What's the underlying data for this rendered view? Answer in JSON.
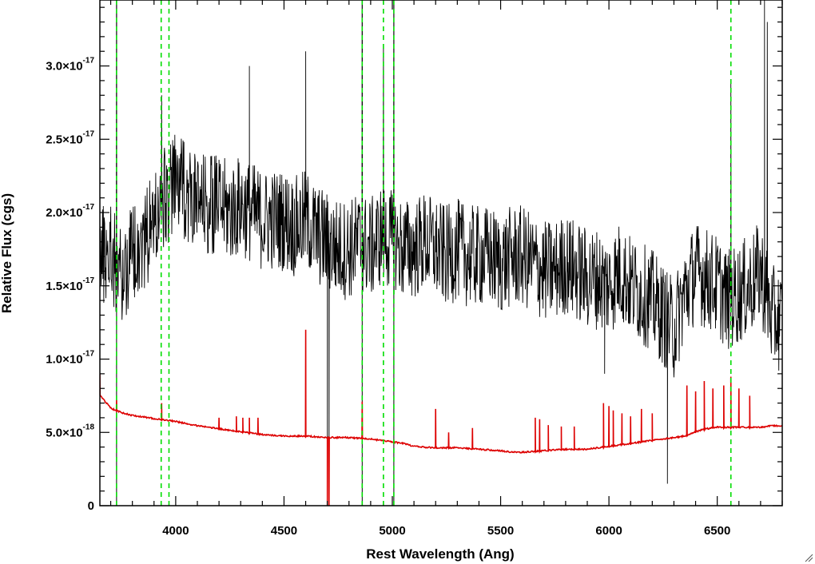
{
  "chart_data": {
    "type": "line",
    "title": "",
    "xlabel": "Rest Wavelength (Ang)",
    "ylabel": "Relative Flux (cgs)",
    "xlim": [
      3650,
      6800
    ],
    "ylim": [
      0,
      3.45e-17
    ],
    "x_ticks": [
      {
        "value": 4000,
        "label": "4000"
      },
      {
        "value": 4500,
        "label": "4500"
      },
      {
        "value": 5000,
        "label": "5000"
      },
      {
        "value": 5500,
        "label": "5500"
      },
      {
        "value": 6000,
        "label": "6000"
      },
      {
        "value": 6500,
        "label": "6500"
      }
    ],
    "y_ticks": [
      {
        "value": 0,
        "mantissa": "0",
        "exponent": ""
      },
      {
        "value": 5e-18,
        "mantissa": "5.0×10",
        "exponent": "-18"
      },
      {
        "value": 1e-17,
        "mantissa": "1.0×10",
        "exponent": "-17"
      },
      {
        "value": 1.5e-17,
        "mantissa": "1.5×10",
        "exponent": "-17"
      },
      {
        "value": 2e-17,
        "mantissa": "2.0×10",
        "exponent": "-17"
      },
      {
        "value": 2.5e-17,
        "mantissa": "2.5×10",
        "exponent": "-17"
      },
      {
        "value": 3e-17,
        "mantissa": "3.0×10",
        "exponent": "-17"
      }
    ],
    "grid": false,
    "legend": "none",
    "series": [
      {
        "color": "#000000",
        "x": [
          3650,
          3700,
          3750,
          3800,
          3850,
          3900,
          3950,
          4000,
          4050,
          4100,
          4150,
          4200,
          4250,
          4300,
          4350,
          4400,
          4450,
          4500,
          4550,
          4600,
          4650,
          4700,
          4750,
          4800,
          4850,
          4900,
          4950,
          5000,
          5050,
          5100,
          5150,
          5200,
          5250,
          5300,
          5350,
          5400,
          5450,
          5500,
          5550,
          5600,
          5650,
          5700,
          5750,
          5800,
          5850,
          5900,
          5950,
          6000,
          6050,
          6100,
          6150,
          6200,
          6250,
          6300,
          6350,
          6400,
          6450,
          6500,
          6550,
          6600,
          6650,
          6700,
          6750,
          6800
        ],
        "y": [
          1.7e-17,
          1.75e-17,
          1.55e-17,
          1.75e-17,
          1.8e-17,
          1.95e-17,
          2.1e-17,
          2.2e-17,
          2.15e-17,
          2.05e-17,
          2.05e-17,
          2.05e-17,
          2e-17,
          2.05e-17,
          2e-17,
          1.95e-17,
          1.95e-17,
          1.95e-17,
          1.9e-17,
          1.95e-17,
          1.85e-17,
          1.8e-17,
          1.75e-17,
          1.75e-17,
          1.8e-17,
          1.75e-17,
          1.85e-17,
          1.8e-17,
          1.75e-17,
          1.75e-17,
          1.8e-17,
          1.75e-17,
          1.7e-17,
          1.75e-17,
          1.7e-17,
          1.7e-17,
          1.7e-17,
          1.65e-17,
          1.7e-17,
          1.7e-17,
          1.65e-17,
          1.6e-17,
          1.6e-17,
          1.65e-17,
          1.6e-17,
          1.55e-17,
          1.55e-17,
          1.5e-17,
          1.6e-17,
          1.5e-17,
          1.45e-17,
          1.4e-17,
          1.3e-17,
          1.2e-17,
          1.45e-17,
          1.6e-17,
          1.55e-17,
          1.5e-17,
          1.4e-17,
          1.45e-17,
          1.5e-17,
          1.6e-17,
          1.3e-17,
          1.25e-17
        ],
        "noise_amplitude": 3.5e-18,
        "spikes": [
          {
            "x": 3727,
            "y": 3.45e-17
          },
          {
            "x": 3935,
            "y": 2.8e-17
          },
          {
            "x": 4340,
            "y": 3e-17
          },
          {
            "x": 4600,
            "y": 3.1e-17
          },
          {
            "x": 4700,
            "y": 0.0
          },
          {
            "x": 4708,
            "y": 0.0
          },
          {
            "x": 4861,
            "y": 3.45e-17
          },
          {
            "x": 4959,
            "y": 3.15e-17
          },
          {
            "x": 5007,
            "y": 3.45e-17
          },
          {
            "x": 5980,
            "y": 9e-18
          },
          {
            "x": 6270,
            "y": 1.5e-18
          },
          {
            "x": 6563,
            "y": 2.9e-17
          },
          {
            "x": 6718,
            "y": 3.45e-17
          },
          {
            "x": 6731,
            "y": 3.3e-17
          }
        ]
      },
      {
        "color": "#dd0000",
        "x": [
          3650,
          3700,
          3750,
          3800,
          3850,
          3900,
          3950,
          4000,
          4100,
          4200,
          4300,
          4400,
          4500,
          4600,
          4700,
          4800,
          4900,
          5000,
          5050,
          5100,
          5200,
          5300,
          5400,
          5500,
          5550,
          5600,
          5700,
          5800,
          5900,
          5950,
          6000,
          6100,
          6200,
          6250,
          6300,
          6350,
          6400,
          6450,
          6500,
          6550,
          6600,
          6650,
          6700,
          6750,
          6800
        ],
        "y": [
          7.5e-18,
          6.6e-18,
          6.3e-18,
          6.1e-18,
          6e-18,
          5.9e-18,
          5.8e-18,
          5.7e-18,
          5.4e-18,
          5.2e-18,
          5e-18,
          4.8e-18,
          4.7e-18,
          4.7e-18,
          4.6e-18,
          4.6e-18,
          4.5e-18,
          4.3e-18,
          4.2e-18,
          4e-18,
          3.9e-18,
          3.9e-18,
          3.8e-18,
          3.7e-18,
          3.6e-18,
          3.6e-18,
          3.7e-18,
          3.8e-18,
          3.8e-18,
          3.9e-18,
          4e-18,
          4.2e-18,
          4.4e-18,
          4.5e-18,
          4.6e-18,
          4.7e-18,
          5e-18,
          5.2e-18,
          5.3e-18,
          5.3e-18,
          5.3e-18,
          5.3e-18,
          5.3e-18,
          5.4e-18,
          5.4e-18
        ],
        "noise_amplitude": 2.5e-19,
        "spikes": [
          {
            "x": 3650,
            "y": 9e-18
          },
          {
            "x": 3727,
            "y": 7.2e-18
          },
          {
            "x": 3935,
            "y": 7e-18
          },
          {
            "x": 4200,
            "y": 6e-18
          },
          {
            "x": 4280,
            "y": 6.1e-18
          },
          {
            "x": 4310,
            "y": 6e-18
          },
          {
            "x": 4340,
            "y": 6e-18
          },
          {
            "x": 4380,
            "y": 6e-18
          },
          {
            "x": 4600,
            "y": 1.2e-17
          },
          {
            "x": 4700,
            "y": 0.0
          },
          {
            "x": 4708,
            "y": 0.0
          },
          {
            "x": 4861,
            "y": 7.1e-18
          },
          {
            "x": 5200,
            "y": 6.6e-18
          },
          {
            "x": 5260,
            "y": 5e-18
          },
          {
            "x": 5370,
            "y": 5.3e-18
          },
          {
            "x": 5660,
            "y": 6e-18
          },
          {
            "x": 5680,
            "y": 5.9e-18
          },
          {
            "x": 5720,
            "y": 5.5e-18
          },
          {
            "x": 5780,
            "y": 5.4e-18
          },
          {
            "x": 5840,
            "y": 5.4e-18
          },
          {
            "x": 5975,
            "y": 7e-18
          },
          {
            "x": 6000,
            "y": 6.8e-18
          },
          {
            "x": 6020,
            "y": 6.5e-18
          },
          {
            "x": 6060,
            "y": 6.3e-18
          },
          {
            "x": 6100,
            "y": 6.1e-18
          },
          {
            "x": 6150,
            "y": 6.6e-18
          },
          {
            "x": 6200,
            "y": 6.3e-18
          },
          {
            "x": 6360,
            "y": 8.2e-18
          },
          {
            "x": 6400,
            "y": 7.8e-18
          },
          {
            "x": 6440,
            "y": 8.5e-18
          },
          {
            "x": 6480,
            "y": 8e-18
          },
          {
            "x": 6530,
            "y": 8.2e-18
          },
          {
            "x": 6563,
            "y": 8.8e-18
          },
          {
            "x": 6600,
            "y": 8e-18
          },
          {
            "x": 6650,
            "y": 7.5e-18
          }
        ]
      }
    ],
    "vlines": {
      "color": "#00dd00",
      "style": "dashed",
      "x": [
        3727,
        3933,
        3969,
        4861,
        4959,
        5007,
        6563
      ]
    },
    "solid_vlines": {
      "color": "#000000",
      "x": [
        3727,
        4861,
        5007
      ]
    }
  }
}
